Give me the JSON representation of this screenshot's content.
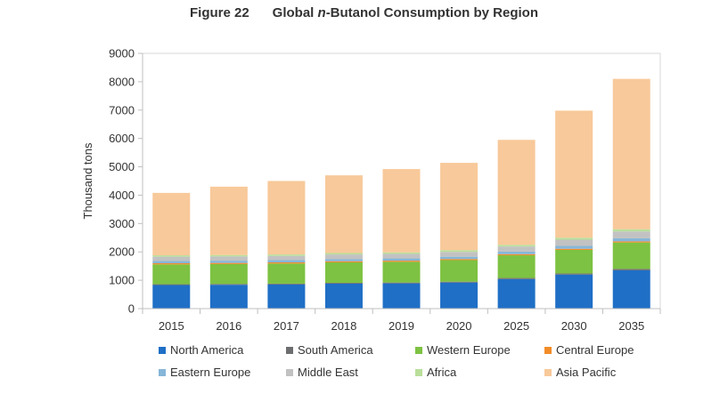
{
  "chart_data": {
    "type": "bar",
    "stacked": true,
    "title": {
      "figure_number": "Figure 22",
      "prefix": "Global ",
      "italic": "n",
      "suffix": "-Butanol Consumption by Region"
    },
    "xlabel": "",
    "ylabel": "Thousand tons",
    "ylim": [
      0,
      9000
    ],
    "yticks": [
      0,
      1000,
      2000,
      3000,
      4000,
      5000,
      6000,
      7000,
      8000,
      9000
    ],
    "grid": false,
    "legend": "bottom",
    "categories": [
      "2015",
      "2016",
      "2017",
      "2018",
      "2019",
      "2020",
      "2025",
      "2030",
      "2035"
    ],
    "series": [
      {
        "name": "North America",
        "color": "#1f6fc6",
        "values": [
          830,
          840,
          850,
          880,
          890,
          920,
          1040,
          1200,
          1350
        ]
      },
      {
        "name": "South America",
        "color": "#6d6e70",
        "values": [
          30,
          30,
          30,
          30,
          30,
          30,
          40,
          40,
          50
        ]
      },
      {
        "name": "Western Europe",
        "color": "#7dc242",
        "values": [
          700,
          700,
          710,
          720,
          730,
          760,
          800,
          830,
          930
        ]
      },
      {
        "name": "Central Europe",
        "color": "#f28c28",
        "values": [
          40,
          40,
          40,
          40,
          40,
          40,
          40,
          40,
          40
        ]
      },
      {
        "name": "Eastern Europe",
        "color": "#86b6d8",
        "values": [
          80,
          80,
          80,
          80,
          80,
          80,
          90,
          100,
          110
        ]
      },
      {
        "name": "Middle East",
        "color": "#c2c2c2",
        "values": [
          150,
          150,
          150,
          160,
          160,
          170,
          180,
          220,
          240
        ]
      },
      {
        "name": "Africa",
        "color": "#b9df9a",
        "values": [
          50,
          50,
          50,
          50,
          50,
          60,
          60,
          70,
          80
        ]
      },
      {
        "name": "Asia Pacific",
        "color": "#f8c99a",
        "values": [
          2200,
          2410,
          2590,
          2740,
          2940,
          3080,
          3700,
          4480,
          5300
        ]
      }
    ]
  }
}
